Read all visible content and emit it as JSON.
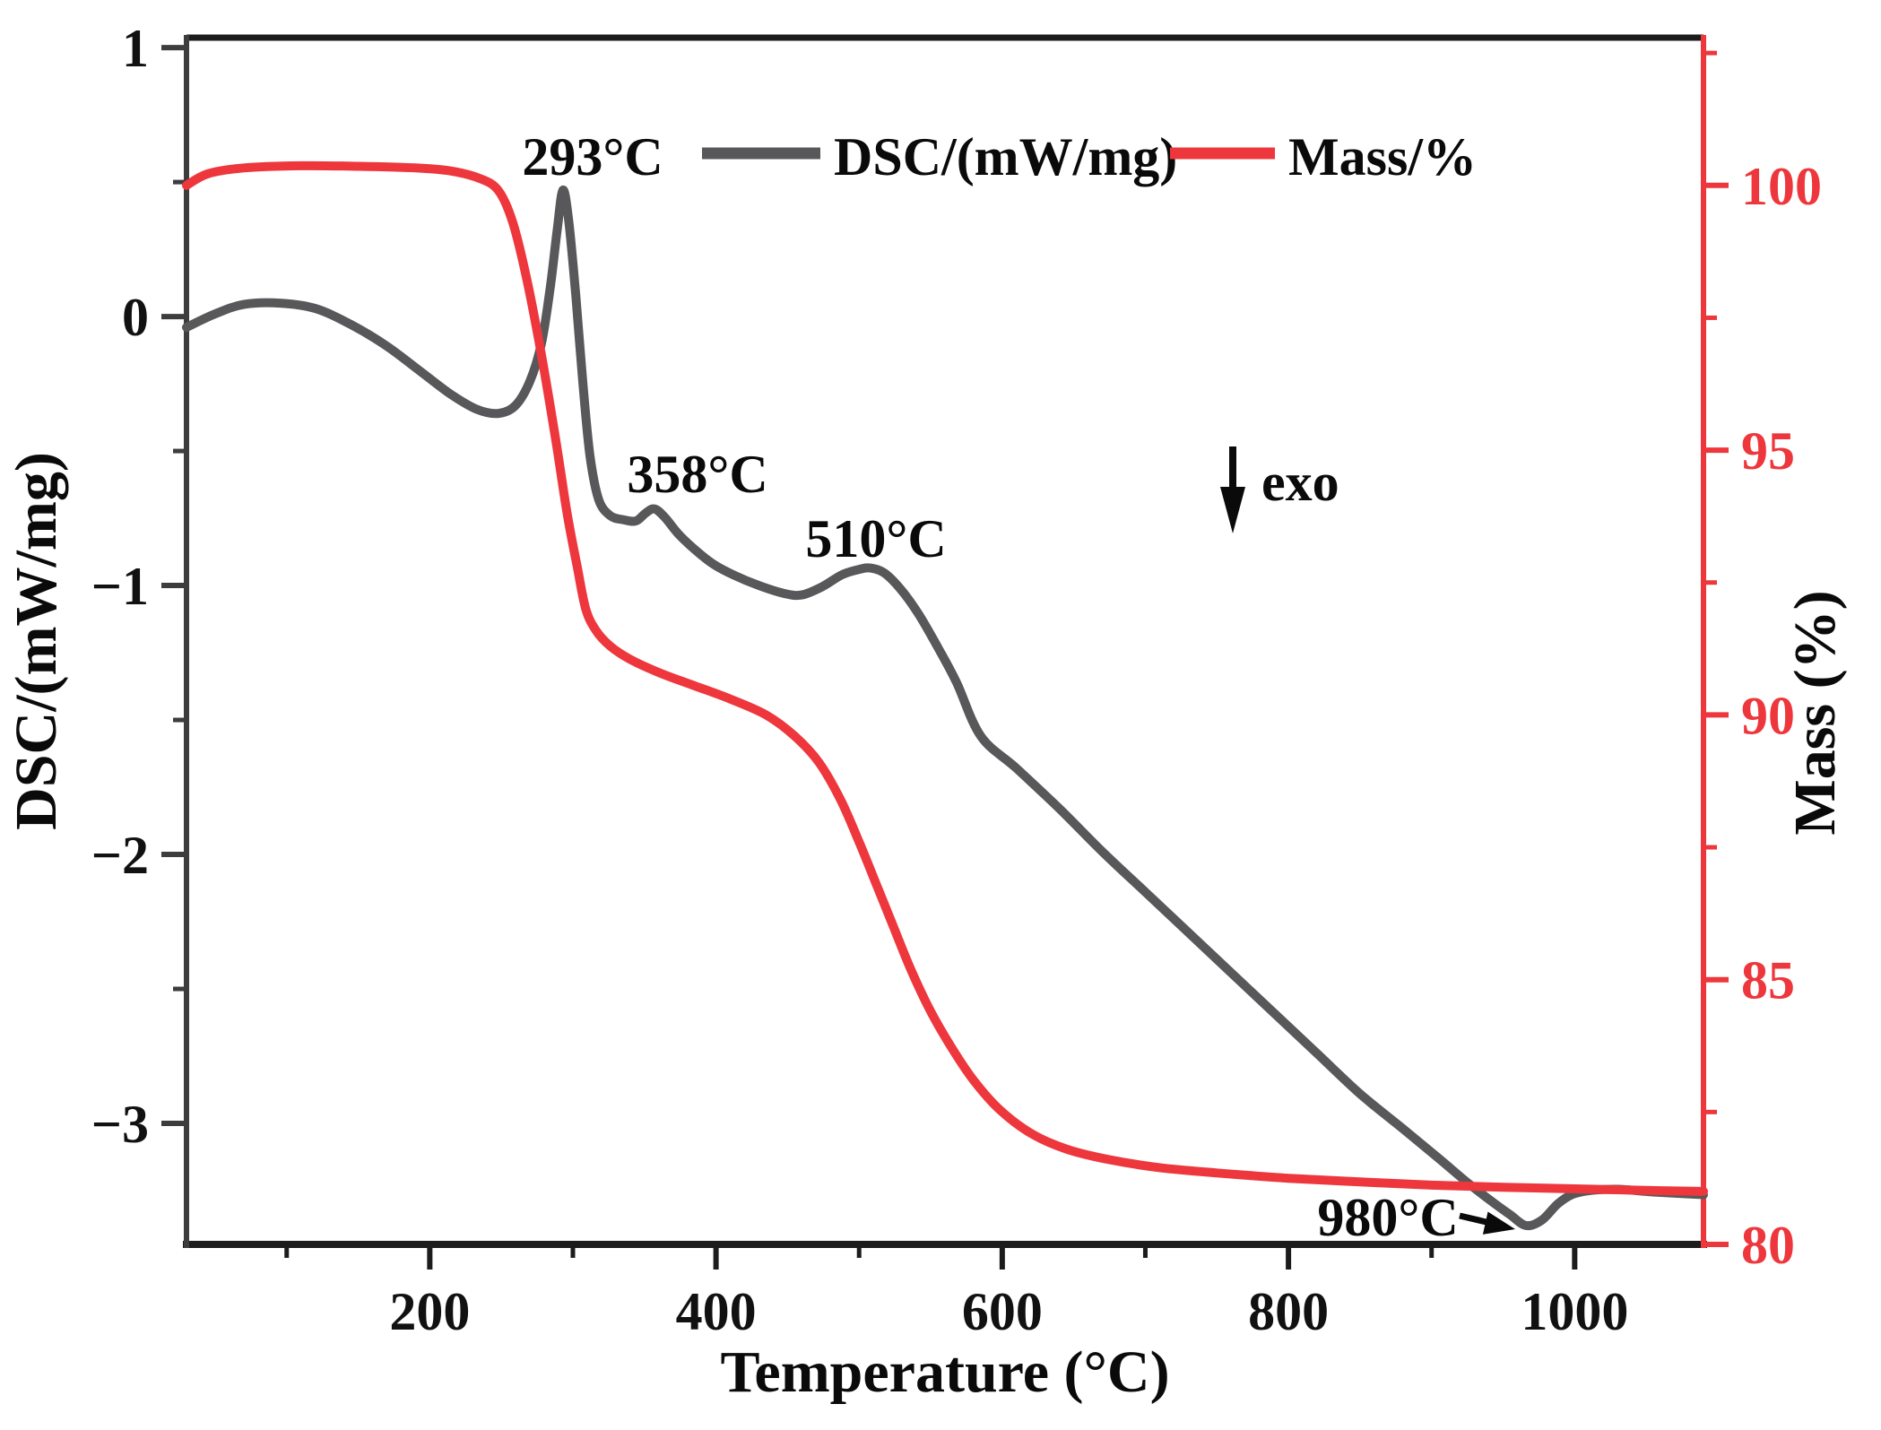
{
  "chart_data": {
    "type": "line",
    "title": "",
    "x_axis": {
      "label": "Temperature (°C)",
      "min": 30,
      "max": 1090,
      "major_ticks": [
        200,
        400,
        600,
        800,
        1000
      ],
      "tick_labels": [
        "200",
        "400",
        "600",
        "800",
        "1000"
      ],
      "minor_ticks": [
        100,
        300,
        500,
        700,
        900
      ]
    },
    "y_left": {
      "label": "DSC/(mW/mg)",
      "min": -3.45,
      "max": 1.037,
      "major_ticks": [
        1,
        0,
        -1,
        -2,
        -3
      ],
      "tick_labels": [
        "1",
        "0",
        "−1",
        "−2",
        "−3"
      ],
      "minor_ticks": [
        0.5,
        -0.5,
        -1.5,
        -2.5
      ]
    },
    "y_right": {
      "label": "Mass (%)",
      "min": 80,
      "max": 102.79,
      "major_ticks": [
        100,
        95,
        90,
        85,
        80
      ],
      "tick_labels": [
        "100",
        "95",
        "90",
        "85",
        "80"
      ],
      "minor_ticks": [
        102.5,
        97.5,
        92.5,
        87.5,
        82.5
      ]
    },
    "legend": {
      "position": "top-center",
      "dsc_label": "DSC/(mW/mg)",
      "mass_label": "Mass/%"
    },
    "annotations": {
      "peak293": {
        "text": "293°C",
        "temp": 293
      },
      "peak358": {
        "text": "358°C",
        "temp": 358
      },
      "peak510": {
        "text": "510°C",
        "temp": 510
      },
      "exo": {
        "text": "exo",
        "meaning": "exothermic direction down-arrow"
      },
      "dip980": {
        "text": "980°C",
        "temp": 980
      }
    },
    "colors": {
      "dsc": "#58585a",
      "mass": "#ee373c",
      "frame": "#1c1c1c",
      "left_spine": "#3d3d3d",
      "right_spine": "#ee373c"
    },
    "grid": false,
    "series": [
      {
        "name": "DSC/(mW/mg)",
        "axis": "left",
        "color": "#58585a",
        "unit": "mW/mg",
        "points": [
          [
            30,
            -0.04
          ],
          [
            50,
            0.01
          ],
          [
            70,
            0.045
          ],
          [
            95,
            0.05
          ],
          [
            120,
            0.03
          ],
          [
            145,
            -0.03
          ],
          [
            170,
            -0.11
          ],
          [
            195,
            -0.21
          ],
          [
            215,
            -0.29
          ],
          [
            233,
            -0.345
          ],
          [
            248,
            -0.36
          ],
          [
            260,
            -0.33
          ],
          [
            270,
            -0.24
          ],
          [
            278,
            -0.1
          ],
          [
            284,
            0.1
          ],
          [
            289,
            0.32
          ],
          [
            293,
            0.47
          ],
          [
            297,
            0.36
          ],
          [
            302,
            0.08
          ],
          [
            307,
            -0.25
          ],
          [
            312,
            -0.52
          ],
          [
            318,
            -0.68
          ],
          [
            326,
            -0.74
          ],
          [
            335,
            -0.755
          ],
          [
            344,
            -0.76
          ],
          [
            351,
            -0.73
          ],
          [
            357,
            -0.715
          ],
          [
            364,
            -0.745
          ],
          [
            374,
            -0.81
          ],
          [
            386,
            -0.87
          ],
          [
            398,
            -0.92
          ],
          [
            412,
            -0.96
          ],
          [
            430,
            -1.0
          ],
          [
            448,
            -1.03
          ],
          [
            460,
            -1.035
          ],
          [
            474,
            -1.005
          ],
          [
            488,
            -0.96
          ],
          [
            500,
            -0.94
          ],
          [
            508,
            -0.935
          ],
          [
            518,
            -0.955
          ],
          [
            530,
            -1.02
          ],
          [
            542,
            -1.11
          ],
          [
            555,
            -1.23
          ],
          [
            568,
            -1.36
          ],
          [
            585,
            -1.56
          ],
          [
            610,
            -1.68
          ],
          [
            640,
            -1.83
          ],
          [
            670,
            -1.99
          ],
          [
            700,
            -2.14
          ],
          [
            730,
            -2.29
          ],
          [
            760,
            -2.44
          ],
          [
            790,
            -2.59
          ],
          [
            820,
            -2.74
          ],
          [
            850,
            -2.89
          ],
          [
            880,
            -3.02
          ],
          [
            905,
            -3.13
          ],
          [
            925,
            -3.22
          ],
          [
            942,
            -3.29
          ],
          [
            955,
            -3.34
          ],
          [
            966,
            -3.38
          ],
          [
            977,
            -3.36
          ],
          [
            988,
            -3.3
          ],
          [
            998,
            -3.265
          ],
          [
            1010,
            -3.25
          ],
          [
            1030,
            -3.245
          ],
          [
            1055,
            -3.255
          ],
          [
            1090,
            -3.265
          ]
        ]
      },
      {
        "name": "Mass/%",
        "axis": "right",
        "color": "#ee373c",
        "unit": "%",
        "points": [
          [
            30,
            100.0
          ],
          [
            45,
            100.22
          ],
          [
            70,
            100.33
          ],
          [
            110,
            100.37
          ],
          [
            150,
            100.36
          ],
          [
            190,
            100.33
          ],
          [
            215,
            100.27
          ],
          [
            235,
            100.13
          ],
          [
            248,
            99.9
          ],
          [
            258,
            99.3
          ],
          [
            268,
            98.2
          ],
          [
            278,
            96.8
          ],
          [
            288,
            95.2
          ],
          [
            296,
            93.8
          ],
          [
            303,
            92.8
          ],
          [
            309,
            92.0
          ],
          [
            316,
            91.6
          ],
          [
            326,
            91.3
          ],
          [
            340,
            91.05
          ],
          [
            360,
            90.8
          ],
          [
            385,
            90.55
          ],
          [
            410,
            90.3
          ],
          [
            435,
            90.0
          ],
          [
            455,
            89.6
          ],
          [
            472,
            89.1
          ],
          [
            487,
            88.4
          ],
          [
            500,
            87.6
          ],
          [
            512,
            86.8
          ],
          [
            524,
            86.0
          ],
          [
            536,
            85.2
          ],
          [
            550,
            84.4
          ],
          [
            565,
            83.7
          ],
          [
            580,
            83.1
          ],
          [
            598,
            82.55
          ],
          [
            620,
            82.1
          ],
          [
            645,
            81.8
          ],
          [
            675,
            81.6
          ],
          [
            710,
            81.45
          ],
          [
            750,
            81.35
          ],
          [
            800,
            81.25
          ],
          [
            850,
            81.18
          ],
          [
            900,
            81.12
          ],
          [
            950,
            81.08
          ],
          [
            1000,
            81.05
          ],
          [
            1050,
            81.02
          ],
          [
            1090,
            81.0
          ]
        ]
      }
    ],
    "layout": {
      "plot": {
        "l": 208,
        "r": 1900,
        "t": 42,
        "b": 1388
      }
    }
  }
}
